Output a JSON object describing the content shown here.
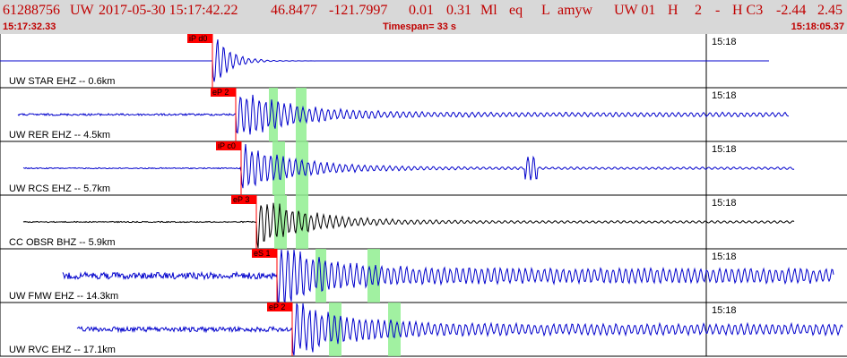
{
  "header": {
    "event_id": "61288756",
    "network": "UW",
    "datetime": "2017-05-30 15:17:42.22",
    "lat": "46.8477",
    "lon": "-121.7997",
    "depth": "0.01",
    "magnitude": "0.31",
    "mag_type": "Ml",
    "event_type": "eq",
    "flag": "L",
    "analyst": "amyw",
    "source": "UW 01",
    "quality": "H",
    "num1": "2",
    "dash": "-",
    "class": "H C3",
    "v1": "-2.44",
    "v2": "2.45"
  },
  "window": {
    "start_time": "15:17:32.33",
    "timespan": "Timespan=  33 s",
    "end_time": "15:18:05.37"
  },
  "panels": [
    {
      "label": "UW STAR EHZ -- 0.6km",
      "time_tick": "15:18",
      "color": "#0000cc",
      "picks": [
        "iP d0"
      ],
      "arrival_s": 8.3,
      "noise": 0.0,
      "amp": 1.0
    },
    {
      "label": "UW RER EHZ -- 4.5km",
      "time_tick": "15:18",
      "color": "#0000cc",
      "picks": [
        "eP 2"
      ],
      "arrival_s": 9.2,
      "noise": 0.22,
      "amp": 1.0
    },
    {
      "label": "UW RCS EHZ -- 5.7km",
      "time_tick": "15:18",
      "color": "#0000cc",
      "picks": [
        "iP c0"
      ],
      "arrival_s": 9.4,
      "noise": 0.12,
      "amp": 1.0
    },
    {
      "label": "CC OBSR BHZ -- 5.9km",
      "time_tick": "15:18",
      "color": "#000000",
      "picks": [
        "eP 3"
      ],
      "arrival_s": 10.0,
      "noise": 0.12,
      "amp": 1.0
    },
    {
      "label": "UW FMW EHZ -- 14.3km",
      "time_tick": "15:18",
      "color": "#0000cc",
      "picks": [
        "eS 1"
      ],
      "arrival_s": 10.8,
      "noise": 0.75,
      "amp": 1.0
    },
    {
      "label": "UW RVC EHZ -- 17.1km",
      "time_tick": "15:18",
      "color": "#0000cc",
      "picks": [
        "eP 2"
      ],
      "arrival_s": 11.4,
      "noise": 0.55,
      "amp": 1.0
    }
  ]
}
